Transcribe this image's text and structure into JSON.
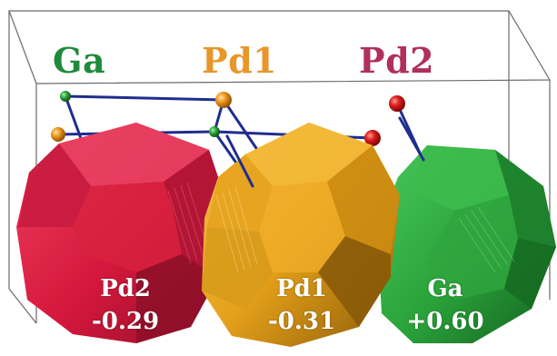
{
  "headers": {
    "ga": "Ga",
    "pd1": "Pd1",
    "pd2": "Pd2"
  },
  "polyhedra": [
    {
      "id": "pd2",
      "label": "Pd2",
      "charge": "-0.29"
    },
    {
      "id": "pd1",
      "label": "Pd1",
      "charge": "-0.31"
    },
    {
      "id": "ga",
      "label": "Ga",
      "charge": "+0.60"
    }
  ],
  "colors": {
    "ga": "#1f8a3a",
    "pd1": "#e8962a",
    "pd2": "#b0305a",
    "pd2_poly": "#d81f45",
    "pd1_poly": "#e7a51c",
    "ga_poly": "#2ca83d",
    "bond": "#1f2d8f",
    "cell_edge": "#555555"
  }
}
